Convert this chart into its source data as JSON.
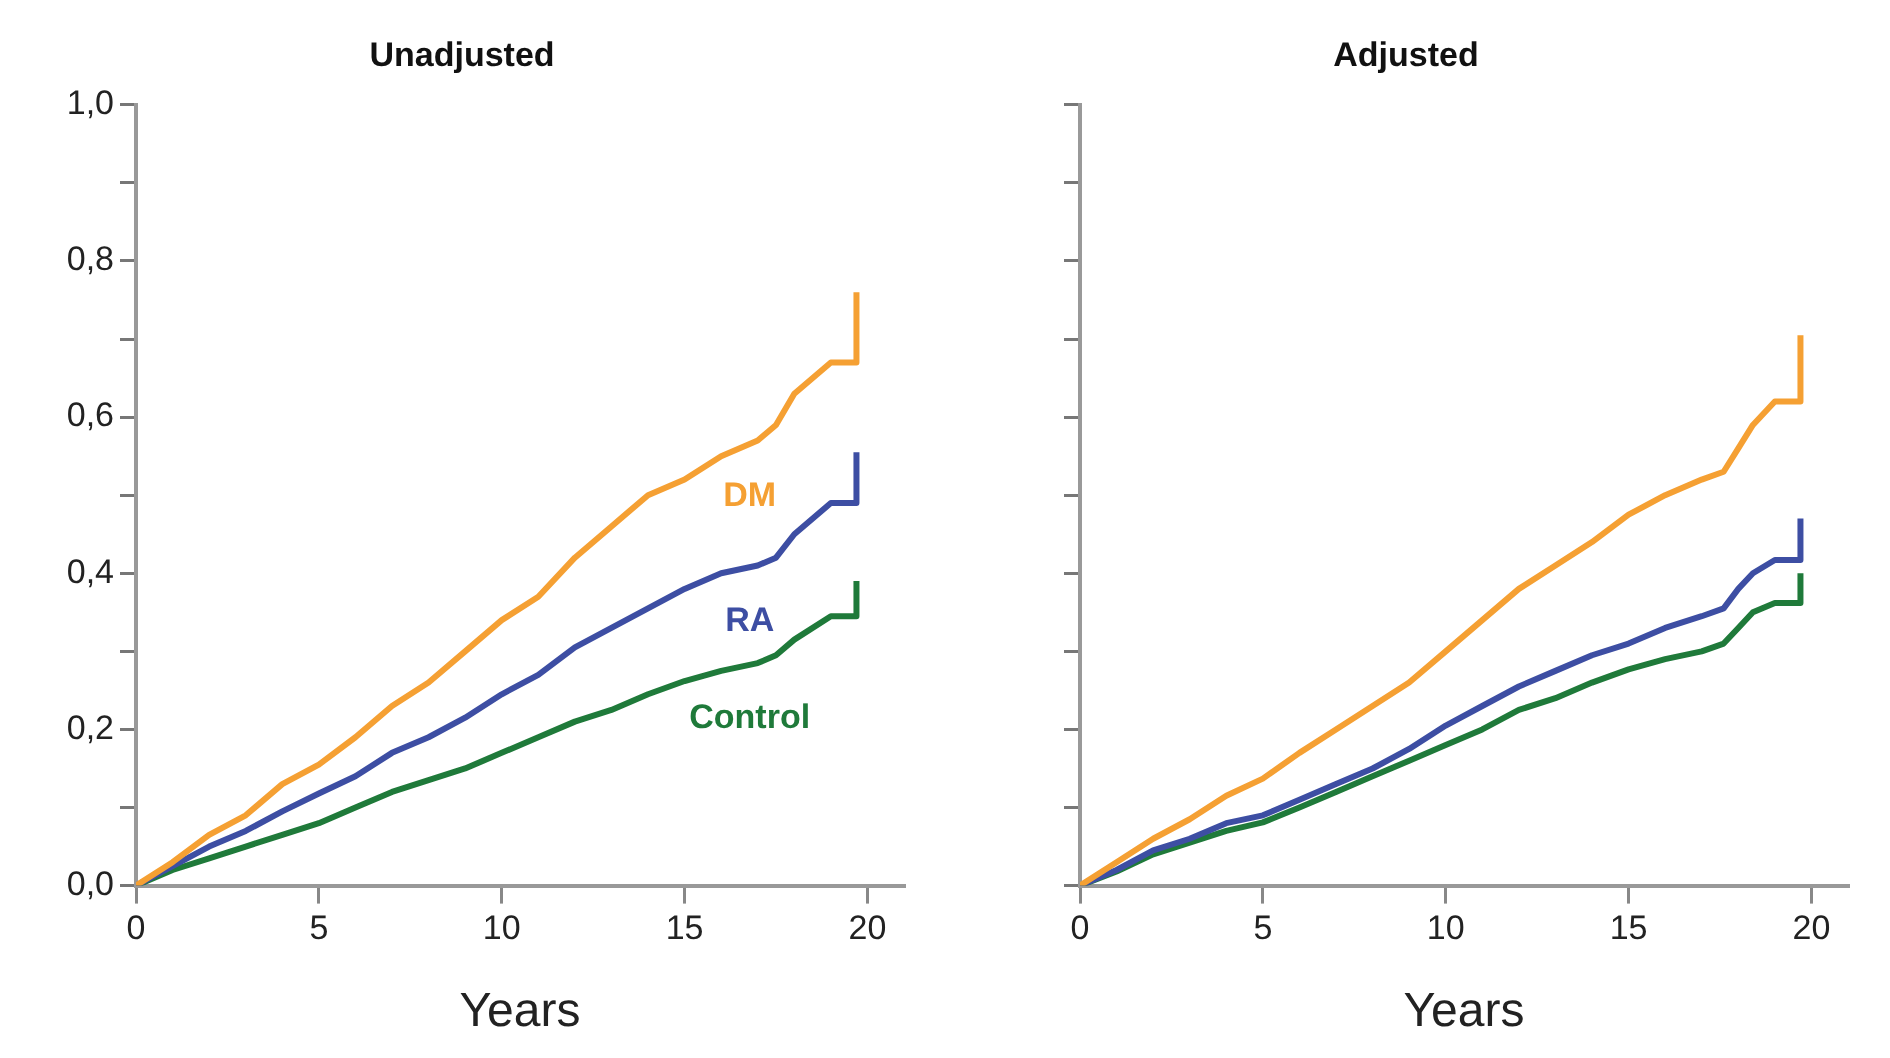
{
  "chart_data": [
    {
      "type": "line",
      "title": "Unadjusted",
      "xlabel": "Years",
      "xlim": [
        0,
        21
      ],
      "xticks": [
        0,
        5,
        10,
        15,
        20
      ],
      "ylim": [
        0,
        1
      ],
      "yticks": [
        {
          "value": 0,
          "label": "0,0"
        },
        {
          "value": 0.1,
          "label": null
        },
        {
          "value": 0.2,
          "label": "0,2"
        },
        {
          "value": 0.3,
          "label": null
        },
        {
          "value": 0.4,
          "label": "0,4"
        },
        {
          "value": 0.5,
          "label": null
        },
        {
          "value": 0.6,
          "label": "0,6"
        },
        {
          "value": 0.7,
          "label": null
        },
        {
          "value": 0.8,
          "label": "0,8"
        },
        {
          "value": 0.9,
          "label": null
        },
        {
          "value": 1,
          "label": "1,0"
        }
      ],
      "grid": false,
      "legend": false,
      "marker": "none",
      "line_style": "solid",
      "x": [
        0,
        1,
        2,
        3,
        4,
        5,
        6,
        7,
        8,
        9,
        10,
        11,
        12,
        13,
        14,
        15,
        16,
        17,
        17.5,
        18,
        19,
        19.7,
        19.7
      ],
      "series": [
        {
          "name": "DM",
          "color": "#f5a033",
          "values": [
            0,
            0.03,
            0.065,
            0.09,
            0.13,
            0.155,
            0.19,
            0.23,
            0.26,
            0.3,
            0.34,
            0.37,
            0.42,
            0.46,
            0.5,
            0.52,
            0.55,
            0.57,
            0.59,
            0.63,
            0.67,
            0.67,
            0.76
          ]
        },
        {
          "name": "RA",
          "color": "#3d4ea3",
          "values": [
            0,
            0.025,
            0.05,
            0.07,
            0.095,
            0.118,
            0.14,
            0.17,
            0.19,
            0.215,
            0.245,
            0.27,
            0.305,
            0.33,
            0.355,
            0.38,
            0.4,
            0.41,
            0.42,
            0.45,
            0.49,
            0.49,
            0.555
          ]
        },
        {
          "name": "Control",
          "color": "#1f7a3a",
          "values": [
            0,
            0.02,
            0.035,
            0.05,
            0.065,
            0.08,
            0.1,
            0.12,
            0.135,
            0.15,
            0.17,
            0.19,
            0.21,
            0.225,
            0.245,
            0.262,
            0.275,
            0.285,
            0.295,
            0.315,
            0.345,
            0.345,
            0.39
          ]
        }
      ]
    },
    {
      "type": "line",
      "title": "Adjusted",
      "xlabel": "Years",
      "xlim": [
        0,
        21
      ],
      "xticks": [
        0,
        5,
        10,
        15,
        20
      ],
      "ylim": [
        0,
        1
      ],
      "yticks": [
        {
          "value": 0,
          "label": null
        },
        {
          "value": 0.1,
          "label": null
        },
        {
          "value": 0.2,
          "label": null
        },
        {
          "value": 0.3,
          "label": null
        },
        {
          "value": 0.4,
          "label": null
        },
        {
          "value": 0.5,
          "label": null
        },
        {
          "value": 0.6,
          "label": null
        },
        {
          "value": 0.7,
          "label": null
        },
        {
          "value": 0.8,
          "label": null
        },
        {
          "value": 0.9,
          "label": null
        },
        {
          "value": 1,
          "label": null
        }
      ],
      "tick_labels": "x",
      "grid": false,
      "legend": false,
      "marker": "none",
      "line_style": "solid",
      "x": [
        0,
        1,
        2,
        3,
        4,
        5,
        6,
        7,
        8,
        9,
        10,
        11,
        12,
        13,
        14,
        15,
        16,
        17,
        17.6,
        18,
        18.4,
        19,
        19.7,
        19.7
      ],
      "series": [
        {
          "color": "#f5a033",
          "values": [
            0,
            0.03,
            0.06,
            0.085,
            0.115,
            0.137,
            0.17,
            0.2,
            0.23,
            0.26,
            0.3,
            0.34,
            0.38,
            0.41,
            0.44,
            0.475,
            0.5,
            0.52,
            0.53,
            0.56,
            0.59,
            0.62,
            0.62,
            0.705
          ]
        },
        {
          "color": "#3d4ea3",
          "values": [
            0,
            0.02,
            0.045,
            0.06,
            0.08,
            0.09,
            0.11,
            0.13,
            0.15,
            0.175,
            0.205,
            0.23,
            0.255,
            0.275,
            0.295,
            0.31,
            0.33,
            0.345,
            0.355,
            0.38,
            0.4,
            0.417,
            0.417,
            0.47
          ]
        },
        {
          "color": "#1f7a3a",
          "values": [
            0,
            0.018,
            0.04,
            0.055,
            0.07,
            0.081,
            0.1,
            0.12,
            0.14,
            0.16,
            0.18,
            0.2,
            0.225,
            0.24,
            0.26,
            0.277,
            0.29,
            0.3,
            0.31,
            0.33,
            0.35,
            0.362,
            0.362,
            0.4
          ]
        }
      ]
    }
  ]
}
